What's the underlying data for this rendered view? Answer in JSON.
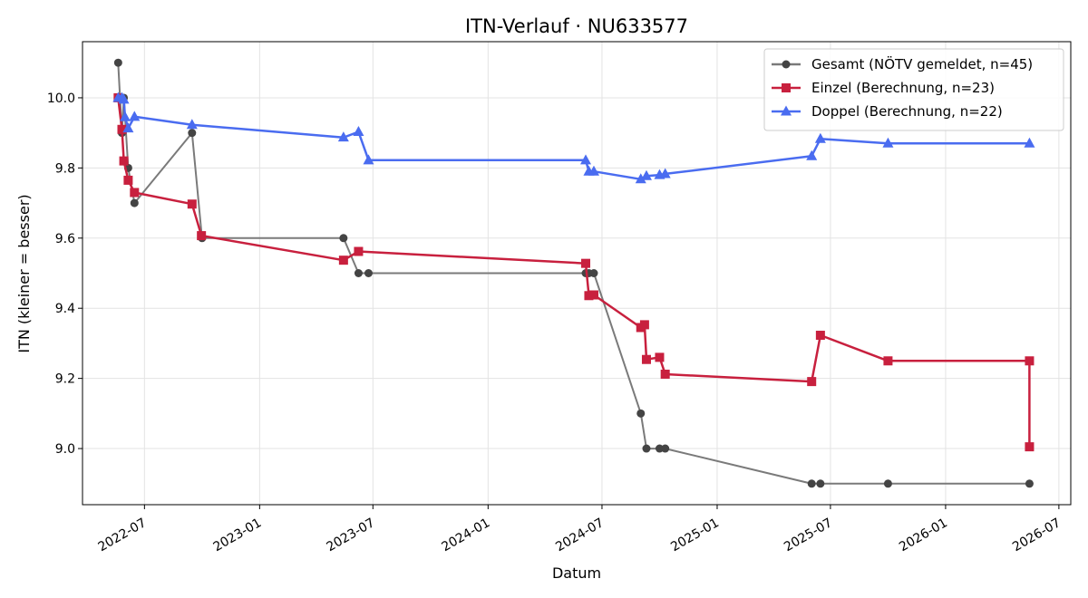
{
  "chart_data": {
    "type": "line",
    "title": "ITN-Verlauf · NU633577",
    "xlabel": "Datum",
    "ylabel": "ITN  (kleiner = besser)",
    "x_type": "date",
    "xlim": [
      "2022-03-24",
      "2026-07-20"
    ],
    "ylim": [
      8.84,
      10.16
    ],
    "x_ticks": [
      {
        "date": "2022-07-01",
        "label": "2022-07"
      },
      {
        "date": "2023-01-01",
        "label": "2023-01"
      },
      {
        "date": "2023-07-01",
        "label": "2023-07"
      },
      {
        "date": "2024-01-01",
        "label": "2024-01"
      },
      {
        "date": "2024-07-01",
        "label": "2024-07"
      },
      {
        "date": "2025-01-01",
        "label": "2025-01"
      },
      {
        "date": "2025-07-01",
        "label": "2025-07"
      },
      {
        "date": "2026-01-01",
        "label": "2026-01"
      },
      {
        "date": "2026-07-01",
        "label": "2026-07"
      }
    ],
    "y_ticks": [
      {
        "value": 9.0,
        "label": "9.0"
      },
      {
        "value": 9.2,
        "label": "9.2"
      },
      {
        "value": 9.4,
        "label": "9.4"
      },
      {
        "value": 9.6,
        "label": "9.6"
      },
      {
        "value": 9.8,
        "label": "9.8"
      },
      {
        "value": 10.0,
        "label": "10.0"
      }
    ],
    "grid": true,
    "legend_position": "top-right",
    "series": [
      {
        "name": "Gesamt (NÖTV gemeldet, n=45)",
        "color": "#7a7a7a",
        "marker_color": "#444444",
        "marker": "circle",
        "points": [
          [
            "2022-05-20",
            10.1
          ],
          [
            "2022-05-23",
            10.0
          ],
          [
            "2022-05-26",
            9.9
          ],
          [
            "2022-05-29",
            10.0
          ],
          [
            "2022-06-05",
            9.8
          ],
          [
            "2022-06-15",
            9.7
          ],
          [
            "2022-09-15",
            9.9
          ],
          [
            "2022-10-01",
            9.6
          ],
          [
            "2023-05-15",
            9.6
          ],
          [
            "2023-06-08",
            9.5
          ],
          [
            "2023-06-24",
            9.5
          ],
          [
            "2024-06-05",
            9.5
          ],
          [
            "2024-06-10",
            9.5
          ],
          [
            "2024-06-18",
            9.5
          ],
          [
            "2024-09-01",
            9.1
          ],
          [
            "2024-09-10",
            9.0
          ],
          [
            "2024-10-01",
            9.0
          ],
          [
            "2024-10-10",
            9.0
          ],
          [
            "2025-06-01",
            8.9
          ],
          [
            "2025-06-15",
            8.9
          ],
          [
            "2025-10-01",
            8.9
          ],
          [
            "2026-05-15",
            8.9
          ]
        ]
      },
      {
        "name": "Einzel (Berechnung, n=23)",
        "color": "#c8203e",
        "marker_color": "#c8203e",
        "marker": "square",
        "points": [
          [
            "2022-05-20",
            10.0
          ],
          [
            "2022-05-26",
            9.91
          ],
          [
            "2022-05-29",
            9.82
          ],
          [
            "2022-06-05",
            9.765
          ],
          [
            "2022-06-15",
            9.73
          ],
          [
            "2022-09-15",
            9.697
          ],
          [
            "2022-09-30",
            9.607
          ],
          [
            "2023-05-15",
            9.537
          ],
          [
            "2023-06-08",
            9.562
          ],
          [
            "2024-06-05",
            9.528
          ],
          [
            "2024-06-10",
            9.436
          ],
          [
            "2024-06-18",
            9.438
          ],
          [
            "2024-09-01",
            9.345
          ],
          [
            "2024-09-07",
            9.353
          ],
          [
            "2024-09-10",
            9.254
          ],
          [
            "2024-10-01",
            9.26
          ],
          [
            "2024-10-10",
            9.212
          ],
          [
            "2025-06-01",
            9.191
          ],
          [
            "2025-06-15",
            9.323
          ],
          [
            "2025-10-01",
            9.25
          ],
          [
            "2026-05-15",
            9.25
          ],
          [
            "2026-05-15",
            9.005
          ]
        ]
      },
      {
        "name": "Doppel (Berechnung, n=22)",
        "color": "#4a6cf0",
        "marker_color": "#4a6cf0",
        "marker": "triangle",
        "points": [
          [
            "2022-05-20",
            10.0
          ],
          [
            "2022-05-26",
            10.0
          ],
          [
            "2022-05-29",
            9.995
          ],
          [
            "2022-05-31",
            9.945
          ],
          [
            "2022-06-05",
            9.913
          ],
          [
            "2022-06-15",
            9.946
          ],
          [
            "2022-09-15",
            9.923
          ],
          [
            "2023-05-15",
            9.887
          ],
          [
            "2023-06-08",
            9.903
          ],
          [
            "2023-06-24",
            9.822
          ],
          [
            "2024-06-05",
            9.822
          ],
          [
            "2024-06-10",
            9.79
          ],
          [
            "2024-06-18",
            9.79
          ],
          [
            "2024-09-01",
            9.768
          ],
          [
            "2024-09-10",
            9.777
          ],
          [
            "2024-10-01",
            9.78
          ],
          [
            "2024-10-10",
            9.783
          ],
          [
            "2025-06-01",
            9.834
          ],
          [
            "2025-06-15",
            9.883
          ],
          [
            "2025-10-01",
            9.87
          ],
          [
            "2026-05-15",
            9.87
          ]
        ]
      }
    ]
  }
}
